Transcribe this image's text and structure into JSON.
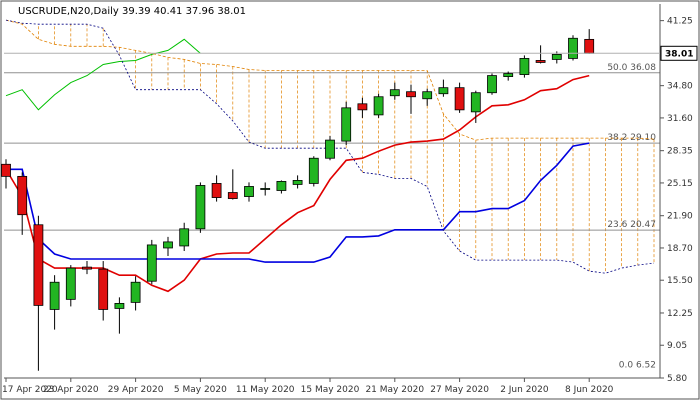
{
  "chart_data": {
    "type": "candlestick",
    "title": "USCRUDE,N20,Daily 39.39 40.41 37.96 38.01",
    "symbol": "USCRUDE,N20",
    "timeframe": "Daily",
    "last_bar_ohlc": [
      39.39,
      40.41,
      37.96,
      38.01
    ],
    "ylim": [
      5.8,
      42.9
    ],
    "y_ticks": [
      "41.25",
      "38.01",
      "34.80",
      "31.60",
      "28.35",
      "25.15",
      "21.90",
      "18.70",
      "15.50",
      "12.25",
      "9.05",
      "5.80"
    ],
    "x_tick_labels": [
      "17 Apr 2020",
      "23 Apr 2020",
      "29 Apr 2020",
      "5 May 2020",
      "11 May 2020",
      "15 May 2020",
      "21 May 2020",
      "27 May 2020",
      "2 Jun 2020",
      "8 Jun 2020"
    ],
    "x_tick_indices": [
      0,
      4,
      8,
      12,
      16,
      20,
      24,
      28,
      32,
      36
    ],
    "current_price": "38.01",
    "candles": [
      {
        "o": 27.0,
        "h": 27.5,
        "l": 24.6,
        "c": 25.8
      },
      {
        "o": 25.8,
        "h": 26.2,
        "l": 20.0,
        "c": 22.0
      },
      {
        "o": 21.0,
        "h": 21.9,
        "l": 6.52,
        "c": 13.0
      },
      {
        "o": 12.6,
        "h": 16.0,
        "l": 10.6,
        "c": 15.3
      },
      {
        "o": 13.6,
        "h": 17.0,
        "l": 12.9,
        "c": 16.7
      },
      {
        "o": 16.8,
        "h": 17.4,
        "l": 16.1,
        "c": 16.6
      },
      {
        "o": 16.6,
        "h": 17.4,
        "l": 11.5,
        "c": 12.6
      },
      {
        "o": 12.7,
        "h": 13.8,
        "l": 10.2,
        "c": 13.2
      },
      {
        "o": 13.3,
        "h": 15.9,
        "l": 12.5,
        "c": 15.3
      },
      {
        "o": 15.4,
        "h": 19.5,
        "l": 15.1,
        "c": 19.0
      },
      {
        "o": 18.7,
        "h": 19.8,
        "l": 17.9,
        "c": 19.3
      },
      {
        "o": 18.9,
        "h": 21.2,
        "l": 18.4,
        "c": 20.6
      },
      {
        "o": 20.6,
        "h": 25.2,
        "l": 20.2,
        "c": 24.9
      },
      {
        "o": 25.1,
        "h": 25.9,
        "l": 23.3,
        "c": 23.7
      },
      {
        "o": 24.2,
        "h": 26.5,
        "l": 23.5,
        "c": 23.6
      },
      {
        "o": 23.8,
        "h": 25.2,
        "l": 23.3,
        "c": 24.8
      },
      {
        "o": 24.5,
        "h": 25.2,
        "l": 23.9,
        "c": 24.6
      },
      {
        "o": 24.4,
        "h": 25.4,
        "l": 24.1,
        "c": 25.3
      },
      {
        "o": 25.0,
        "h": 25.9,
        "l": 24.6,
        "c": 25.4
      },
      {
        "o": 25.1,
        "h": 27.8,
        "l": 24.8,
        "c": 27.6
      },
      {
        "o": 27.6,
        "h": 29.8,
        "l": 27.4,
        "c": 29.4
      },
      {
        "o": 29.3,
        "h": 33.2,
        "l": 28.9,
        "c": 32.6
      },
      {
        "o": 33.0,
        "h": 33.6,
        "l": 31.6,
        "c": 32.4
      },
      {
        "o": 31.9,
        "h": 34.0,
        "l": 31.6,
        "c": 33.7
      },
      {
        "o": 33.8,
        "h": 35.1,
        "l": 33.4,
        "c": 34.4
      },
      {
        "o": 34.2,
        "h": 34.9,
        "l": 32.0,
        "c": 33.7
      },
      {
        "o": 33.5,
        "h": 34.5,
        "l": 32.8,
        "c": 34.2
      },
      {
        "o": 34.0,
        "h": 35.4,
        "l": 33.7,
        "c": 34.6
      },
      {
        "o": 34.6,
        "h": 35.1,
        "l": 32.1,
        "c": 32.4
      },
      {
        "o": 32.2,
        "h": 34.3,
        "l": 31.1,
        "c": 34.1
      },
      {
        "o": 34.1,
        "h": 36.0,
        "l": 33.9,
        "c": 35.8
      },
      {
        "o": 35.7,
        "h": 36.2,
        "l": 35.3,
        "c": 36.0
      },
      {
        "o": 35.9,
        "h": 37.8,
        "l": 35.6,
        "c": 37.5
      },
      {
        "o": 37.3,
        "h": 38.8,
        "l": 37.0,
        "c": 37.1
      },
      {
        "o": 37.4,
        "h": 38.2,
        "l": 37.0,
        "c": 37.9
      },
      {
        "o": 37.5,
        "h": 39.8,
        "l": 37.3,
        "c": 39.5
      },
      {
        "o": 39.39,
        "h": 40.41,
        "l": 37.96,
        "c": 38.01
      }
    ],
    "series": [
      {
        "kind": "tenkan",
        "color": "#e00000",
        "points": [
          [
            0,
            26.5
          ],
          [
            1,
            23.8
          ],
          [
            2,
            17.6
          ],
          [
            3,
            16.7
          ],
          [
            4,
            16.7
          ],
          [
            5,
            16.7
          ],
          [
            6,
            16.7
          ],
          [
            7,
            16.0
          ],
          [
            8,
            16.0
          ],
          [
            9,
            15.0
          ],
          [
            10,
            14.4
          ],
          [
            11,
            15.5
          ],
          [
            12,
            17.6
          ],
          [
            13,
            18.1
          ],
          [
            14,
            18.2
          ],
          [
            15,
            18.2
          ],
          [
            16,
            19.6
          ],
          [
            17,
            21.0
          ],
          [
            18,
            22.2
          ],
          [
            19,
            22.9
          ],
          [
            20,
            25.5
          ],
          [
            21,
            27.4
          ],
          [
            22,
            27.6
          ],
          [
            23,
            28.3
          ],
          [
            24,
            28.9
          ],
          [
            25,
            29.2
          ],
          [
            26,
            29.3
          ],
          [
            27,
            29.5
          ],
          [
            28,
            30.4
          ],
          [
            29,
            31.7
          ],
          [
            30,
            32.8
          ],
          [
            31,
            32.9
          ],
          [
            32,
            33.4
          ],
          [
            33,
            34.3
          ],
          [
            34,
            34.5
          ],
          [
            35,
            35.4
          ],
          [
            36,
            35.8
          ]
        ]
      },
      {
        "kind": "kijun",
        "color": "#0000e0",
        "points": [
          [
            0,
            26.5
          ],
          [
            1,
            26.5
          ],
          [
            2,
            19.6
          ],
          [
            3,
            18.1
          ],
          [
            4,
            17.6
          ],
          [
            5,
            17.6
          ],
          [
            6,
            17.6
          ],
          [
            7,
            17.6
          ],
          [
            8,
            17.6
          ],
          [
            9,
            17.6
          ],
          [
            10,
            17.6
          ],
          [
            11,
            17.6
          ],
          [
            12,
            17.6
          ],
          [
            13,
            17.6
          ],
          [
            14,
            17.6
          ],
          [
            15,
            17.6
          ],
          [
            16,
            17.3
          ],
          [
            17,
            17.3
          ],
          [
            18,
            17.3
          ],
          [
            19,
            17.3
          ],
          [
            20,
            17.8
          ],
          [
            21,
            19.8
          ],
          [
            22,
            19.8
          ],
          [
            23,
            19.9
          ],
          [
            24,
            20.5
          ],
          [
            25,
            20.5
          ],
          [
            26,
            20.5
          ],
          [
            27,
            20.5
          ],
          [
            28,
            22.3
          ],
          [
            29,
            22.3
          ],
          [
            30,
            22.6
          ],
          [
            31,
            22.6
          ],
          [
            32,
            23.4
          ],
          [
            33,
            25.4
          ],
          [
            34,
            26.9
          ],
          [
            35,
            28.8
          ],
          [
            36,
            29.1
          ]
        ]
      },
      {
        "kind": "chikou",
        "color": "#00c000",
        "points": [
          [
            0,
            33.8
          ],
          [
            1,
            34.4
          ],
          [
            2,
            32.4
          ],
          [
            3,
            33.9
          ],
          [
            4,
            35.1
          ],
          [
            5,
            35.8
          ],
          [
            6,
            36.9
          ],
          [
            7,
            37.2
          ],
          [
            8,
            37.3
          ],
          [
            9,
            37.9
          ],
          [
            10,
            38.3
          ],
          [
            11,
            39.4
          ],
          [
            12,
            38.0
          ]
        ]
      },
      {
        "kind": "span-a",
        "color": "#e08000",
        "points": [
          [
            0,
            41.3
          ],
          [
            1,
            40.9
          ],
          [
            2,
            39.4
          ],
          [
            3,
            38.9
          ],
          [
            4,
            38.7
          ],
          [
            5,
            38.7
          ],
          [
            6,
            38.7
          ],
          [
            7,
            38.6
          ],
          [
            8,
            38.3
          ],
          [
            9,
            38.0
          ],
          [
            10,
            37.6
          ],
          [
            11,
            37.4
          ],
          [
            12,
            37.0
          ],
          [
            13,
            36.9
          ],
          [
            14,
            36.7
          ],
          [
            15,
            36.4
          ],
          [
            16,
            36.3
          ],
          [
            17,
            36.3
          ],
          [
            18,
            36.3
          ],
          [
            19,
            36.3
          ],
          [
            20,
            36.3
          ],
          [
            21,
            36.3
          ],
          [
            22,
            36.3
          ],
          [
            23,
            36.3
          ],
          [
            24,
            36.3
          ],
          [
            25,
            36.3
          ],
          [
            26,
            36.3
          ],
          [
            27,
            32.0
          ],
          [
            28,
            30.0
          ],
          [
            29,
            29.4
          ],
          [
            30,
            29.6
          ],
          [
            31,
            29.6
          ],
          [
            32,
            29.6
          ],
          [
            33,
            29.6
          ],
          [
            34,
            29.6
          ],
          [
            35,
            29.6
          ],
          [
            36,
            29.6
          ],
          [
            37,
            29.6
          ],
          [
            38,
            29.6
          ],
          [
            39,
            29.6
          ],
          [
            40,
            29.5
          ],
          [
            41,
            29.3
          ],
          [
            42,
            28.8
          ]
        ]
      },
      {
        "kind": "span-b",
        "color": "#000080",
        "points": [
          [
            0,
            41.3
          ],
          [
            1,
            41.0
          ],
          [
            2,
            40.9
          ],
          [
            3,
            40.9
          ],
          [
            4,
            40.9
          ],
          [
            5,
            40.9
          ],
          [
            6,
            40.5
          ],
          [
            7,
            37.8
          ],
          [
            8,
            34.4
          ],
          [
            9,
            34.4
          ],
          [
            10,
            34.4
          ],
          [
            11,
            34.4
          ],
          [
            12,
            34.4
          ],
          [
            13,
            33.0
          ],
          [
            14,
            31.3
          ],
          [
            15,
            29.2
          ],
          [
            16,
            28.6
          ],
          [
            17,
            28.6
          ],
          [
            18,
            28.6
          ],
          [
            19,
            28.6
          ],
          [
            20,
            28.6
          ],
          [
            21,
            28.6
          ],
          [
            22,
            26.2
          ],
          [
            23,
            26.0
          ],
          [
            24,
            25.6
          ],
          [
            25,
            25.6
          ],
          [
            26,
            24.8
          ],
          [
            27,
            20.4
          ],
          [
            28,
            18.4
          ],
          [
            29,
            17.5
          ],
          [
            30,
            17.5
          ],
          [
            31,
            17.5
          ],
          [
            32,
            17.5
          ],
          [
            33,
            17.5
          ],
          [
            34,
            17.5
          ],
          [
            35,
            17.3
          ],
          [
            36,
            16.4
          ],
          [
            37,
            16.2
          ],
          [
            38,
            16.7
          ],
          [
            39,
            17.0
          ],
          [
            40,
            17.2
          ],
          [
            41,
            17.6
          ],
          [
            42,
            17.6
          ]
        ]
      }
    ],
    "fib_levels": [
      {
        "label": "50.0 36.08",
        "value": 36.08
      },
      {
        "label": "38.2 29.10",
        "value": 29.1
      },
      {
        "label": "23.6 20.47",
        "value": 20.47
      },
      {
        "label": "0.0 6.52",
        "value": 6.52
      }
    ],
    "colors": {
      "bull": "#22b522",
      "bear": "#e01010",
      "grid": "#d0d0d0",
      "fib": "#909090",
      "cloud": "#e08000"
    }
  }
}
